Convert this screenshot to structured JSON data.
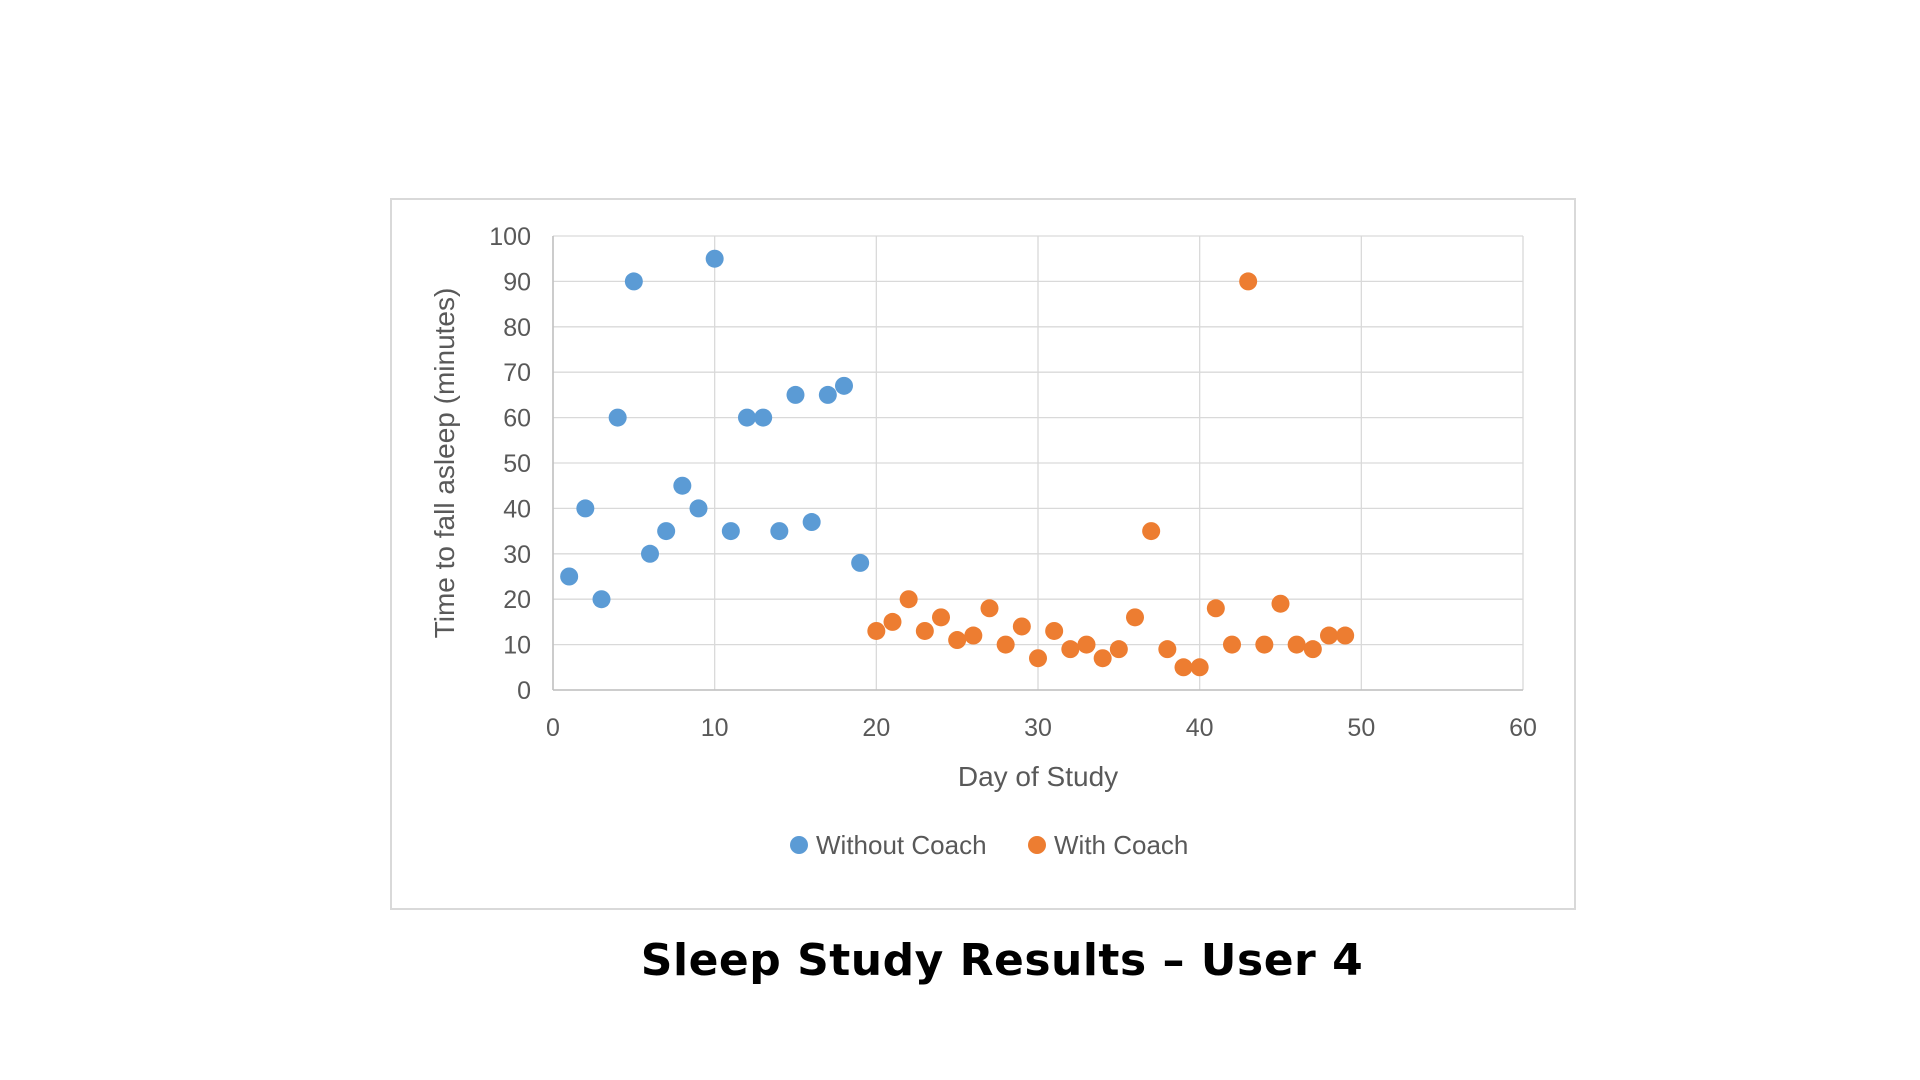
{
  "caption": "Sleep Study Results – User 4",
  "chart_data": {
    "type": "scatter",
    "title": "",
    "xlabel": "Day of Study",
    "ylabel": "Time to fall asleep (minutes)",
    "xlim": [
      0,
      60
    ],
    "ylim": [
      0,
      100
    ],
    "x_ticks": [
      0,
      10,
      20,
      30,
      40,
      50,
      60
    ],
    "y_ticks": [
      0,
      10,
      20,
      30,
      40,
      50,
      60,
      70,
      80,
      90,
      100
    ],
    "grid": true,
    "legend_position": "bottom",
    "series": [
      {
        "name": "Without Coach",
        "color": "#5b9bd5",
        "points": [
          [
            1,
            25
          ],
          [
            2,
            40
          ],
          [
            3,
            20
          ],
          [
            4,
            60
          ],
          [
            5,
            90
          ],
          [
            6,
            30
          ],
          [
            7,
            35
          ],
          [
            8,
            45
          ],
          [
            9,
            40
          ],
          [
            10,
            95
          ],
          [
            11,
            35
          ],
          [
            12,
            60
          ],
          [
            13,
            60
          ],
          [
            14,
            35
          ],
          [
            15,
            65
          ],
          [
            16,
            37
          ],
          [
            17,
            65
          ],
          [
            18,
            67
          ],
          [
            19,
            28
          ]
        ]
      },
      {
        "name": "With Coach",
        "color": "#ed7d31",
        "points": [
          [
            20,
            13
          ],
          [
            21,
            15
          ],
          [
            22,
            20
          ],
          [
            23,
            13
          ],
          [
            24,
            16
          ],
          [
            25,
            11
          ],
          [
            26,
            12
          ],
          [
            27,
            18
          ],
          [
            28,
            10
          ],
          [
            29,
            14
          ],
          [
            30,
            7
          ],
          [
            31,
            13
          ],
          [
            32,
            9
          ],
          [
            33,
            10
          ],
          [
            34,
            7
          ],
          [
            35,
            9
          ],
          [
            36,
            16
          ],
          [
            37,
            35
          ],
          [
            38,
            9
          ],
          [
            39,
            5
          ],
          [
            40,
            5
          ],
          [
            41,
            18
          ],
          [
            42,
            10
          ],
          [
            43,
            90
          ],
          [
            44,
            10
          ],
          [
            45,
            19
          ],
          [
            46,
            10
          ],
          [
            47,
            9
          ],
          [
            48,
            12
          ],
          [
            49,
            12
          ]
        ]
      }
    ]
  }
}
